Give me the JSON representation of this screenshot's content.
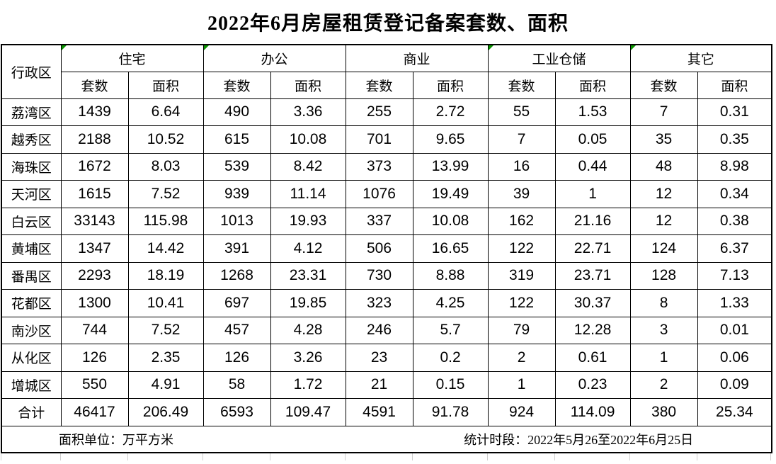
{
  "title": "2022年6月房屋租赁登记备案套数、面积",
  "table": {
    "corner_header": "行政区",
    "categories": [
      {
        "label": "住宅",
        "marker": true
      },
      {
        "label": "办公",
        "marker": true
      },
      {
        "label": "商业",
        "marker": false
      },
      {
        "label": "工业仓储",
        "marker": true
      },
      {
        "label": "其它",
        "marker": true
      }
    ],
    "sub_headers": [
      "套数",
      "面积"
    ],
    "rows": [
      {
        "district": "荔湾区",
        "values": [
          "1439",
          "6.64",
          "490",
          "3.36",
          "255",
          "2.72",
          "55",
          "1.53",
          "7",
          "0.31"
        ]
      },
      {
        "district": "越秀区",
        "values": [
          "2188",
          "10.52",
          "615",
          "10.08",
          "701",
          "9.65",
          "7",
          "0.05",
          "35",
          "0.35"
        ]
      },
      {
        "district": "海珠区",
        "values": [
          "1672",
          "8.03",
          "539",
          "8.42",
          "373",
          "13.99",
          "16",
          "0.44",
          "48",
          "8.98"
        ]
      },
      {
        "district": "天河区",
        "values": [
          "1615",
          "7.52",
          "939",
          "11.14",
          "1076",
          "19.49",
          "39",
          "1",
          "12",
          "0.34"
        ]
      },
      {
        "district": "白云区",
        "values": [
          "33143",
          "115.98",
          "1013",
          "19.93",
          "337",
          "10.08",
          "162",
          "21.16",
          "12",
          "0.38"
        ]
      },
      {
        "district": "黄埔区",
        "values": [
          "1347",
          "14.42",
          "391",
          "4.12",
          "506",
          "16.65",
          "122",
          "22.71",
          "124",
          "6.37"
        ]
      },
      {
        "district": "番禺区",
        "values": [
          "2293",
          "18.19",
          "1268",
          "23.31",
          "730",
          "8.88",
          "319",
          "23.71",
          "128",
          "7.13"
        ]
      },
      {
        "district": "花都区",
        "values": [
          "1300",
          "10.41",
          "697",
          "19.85",
          "323",
          "4.25",
          "122",
          "30.37",
          "8",
          "1.33"
        ]
      },
      {
        "district": "南沙区",
        "values": [
          "744",
          "7.52",
          "457",
          "4.28",
          "246",
          "5.7",
          "79",
          "12.28",
          "3",
          "0.01"
        ]
      },
      {
        "district": "从化区",
        "values": [
          "126",
          "2.35",
          "126",
          "3.26",
          "23",
          "0.2",
          "2",
          "0.61",
          "1",
          "0.06"
        ]
      },
      {
        "district": "增城区",
        "values": [
          "550",
          "4.91",
          "58",
          "1.72",
          "21",
          "0.15",
          "1",
          "0.23",
          "2",
          "0.09"
        ]
      },
      {
        "district": "合计",
        "is_total": true,
        "values": [
          "46417",
          "206.49",
          "6593",
          "109.47",
          "4591",
          "91.78",
          "924",
          "114.09",
          "380",
          "25.34"
        ]
      }
    ]
  },
  "footer": {
    "unit_note": "面积单位：万平方米",
    "period_note": "统计时段：2022年5月26至2022年6月25日"
  },
  "colors": {
    "marker_green": "#0a9400",
    "border_black": "#000000",
    "gridline_gray": "#cfcfcf"
  },
  "chart_data": {
    "type": "table",
    "title": "2022年6月房屋租赁登记备案套数、面积",
    "columns": [
      "行政区",
      "住宅套数",
      "住宅面积",
      "办公套数",
      "办公面积",
      "商业套数",
      "商业面积",
      "工业仓储套数",
      "工业仓储面积",
      "其它套数",
      "其它面积"
    ],
    "unit": "万平方米",
    "period": "2022年5月26至2022年6月25日"
  }
}
